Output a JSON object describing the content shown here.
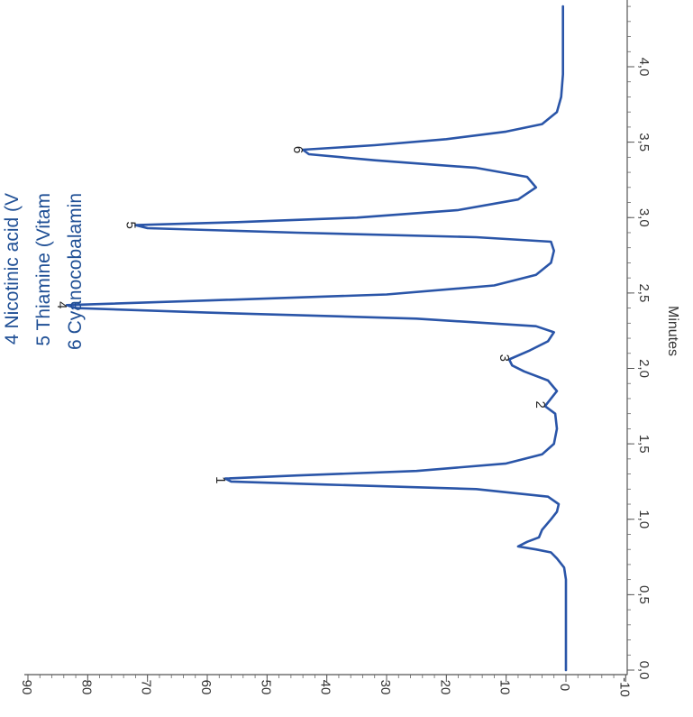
{
  "chart_data": {
    "type": "line",
    "orientation": "rotated-90-ccw",
    "xlabel": "Minutes",
    "ylabel": "",
    "x_ticks": [
      "0,0",
      "0,5",
      "1,0",
      "1,5",
      "2,0",
      "2,5",
      "3,0",
      "3,5",
      "4,0"
    ],
    "y_ticks": [
      "-10",
      "0",
      "10",
      "20",
      "30",
      "40",
      "50",
      "60",
      "70",
      "80",
      "90"
    ],
    "xlim": [
      0.0,
      4.4
    ],
    "ylim": [
      -10,
      90
    ],
    "line_color": "#2a55a8",
    "series": [
      {
        "values": [
          {
            "x": 0.0,
            "y": 0.0
          },
          {
            "x": 0.1,
            "y": 0.0
          },
          {
            "x": 0.2,
            "y": 0.0
          },
          {
            "x": 0.3,
            "y": 0.0
          },
          {
            "x": 0.4,
            "y": 0.0
          },
          {
            "x": 0.5,
            "y": 0.0
          },
          {
            "x": 0.6,
            "y": 0.0
          },
          {
            "x": 0.68,
            "y": 0.3
          },
          {
            "x": 0.74,
            "y": 1.5
          },
          {
            "x": 0.78,
            "y": 2.5
          },
          {
            "x": 0.8,
            "y": 5.0
          },
          {
            "x": 0.82,
            "y": 8.0
          },
          {
            "x": 0.85,
            "y": 6.5
          },
          {
            "x": 0.88,
            "y": 4.5
          },
          {
            "x": 0.93,
            "y": 4.0
          },
          {
            "x": 1.0,
            "y": 2.5
          },
          {
            "x": 1.05,
            "y": 1.5
          },
          {
            "x": 1.1,
            "y": 1.2
          },
          {
            "x": 1.15,
            "y": 3.0
          },
          {
            "x": 1.2,
            "y": 15.0
          },
          {
            "x": 1.23,
            "y": 40.0
          },
          {
            "x": 1.25,
            "y": 56.0
          },
          {
            "x": 1.27,
            "y": 57.0
          },
          {
            "x": 1.29,
            "y": 45.0
          },
          {
            "x": 1.32,
            "y": 25.0
          },
          {
            "x": 1.37,
            "y": 10.0
          },
          {
            "x": 1.43,
            "y": 4.0
          },
          {
            "x": 1.5,
            "y": 2.0
          },
          {
            "x": 1.6,
            "y": 1.5
          },
          {
            "x": 1.7,
            "y": 1.8
          },
          {
            "x": 1.75,
            "y": 3.5
          },
          {
            "x": 1.8,
            "y": 2.5
          },
          {
            "x": 1.85,
            "y": 1.5
          },
          {
            "x": 1.92,
            "y": 3.0
          },
          {
            "x": 1.98,
            "y": 7.0
          },
          {
            "x": 2.02,
            "y": 9.0
          },
          {
            "x": 2.06,
            "y": 9.5
          },
          {
            "x": 2.12,
            "y": 6.0
          },
          {
            "x": 2.18,
            "y": 3.0
          },
          {
            "x": 2.24,
            "y": 2.0
          },
          {
            "x": 2.28,
            "y": 5.0
          },
          {
            "x": 2.33,
            "y": 25.0
          },
          {
            "x": 2.37,
            "y": 60.0
          },
          {
            "x": 2.4,
            "y": 82.0
          },
          {
            "x": 2.42,
            "y": 83.5
          },
          {
            "x": 2.45,
            "y": 60.0
          },
          {
            "x": 2.49,
            "y": 30.0
          },
          {
            "x": 2.55,
            "y": 12.0
          },
          {
            "x": 2.62,
            "y": 5.0
          },
          {
            "x": 2.7,
            "y": 2.5
          },
          {
            "x": 2.78,
            "y": 2.0
          },
          {
            "x": 2.84,
            "y": 2.5
          },
          {
            "x": 2.87,
            "y": 15.0
          },
          {
            "x": 2.9,
            "y": 45.0
          },
          {
            "x": 2.93,
            "y": 70.0
          },
          {
            "x": 2.95,
            "y": 72.0
          },
          {
            "x": 2.97,
            "y": 55.0
          },
          {
            "x": 3.0,
            "y": 35.0
          },
          {
            "x": 3.05,
            "y": 18.0
          },
          {
            "x": 3.12,
            "y": 8.0
          },
          {
            "x": 3.2,
            "y": 5.0
          },
          {
            "x": 3.27,
            "y": 6.5
          },
          {
            "x": 3.33,
            "y": 15.0
          },
          {
            "x": 3.38,
            "y": 32.0
          },
          {
            "x": 3.42,
            "y": 43.0
          },
          {
            "x": 3.45,
            "y": 44.0
          },
          {
            "x": 3.48,
            "y": 32.0
          },
          {
            "x": 3.52,
            "y": 20.0
          },
          {
            "x": 3.57,
            "y": 10.0
          },
          {
            "x": 3.62,
            "y": 4.0
          },
          {
            "x": 3.7,
            "y": 1.5
          },
          {
            "x": 3.8,
            "y": 0.8
          },
          {
            "x": 3.95,
            "y": 0.5
          },
          {
            "x": 4.1,
            "y": 0.5
          },
          {
            "x": 4.25,
            "y": 0.5
          },
          {
            "x": 4.4,
            "y": 0.5
          }
        ]
      }
    ],
    "peaks": [
      {
        "label": "1",
        "x": 1.26,
        "y": 57.0
      },
      {
        "label": "2",
        "x": 1.76,
        "y": 3.5
      },
      {
        "label": "3",
        "x": 2.07,
        "y": 9.5
      },
      {
        "label": "4",
        "x": 2.42,
        "y": 83.5
      },
      {
        "label": "5",
        "x": 2.95,
        "y": 72.0
      },
      {
        "label": "6",
        "x": 3.45,
        "y": 44.0
      }
    ],
    "legend": [
      "4 Nicotinic acid (V",
      "5 Thiamine (Vitam",
      "6 Cyanocobalamin"
    ]
  }
}
